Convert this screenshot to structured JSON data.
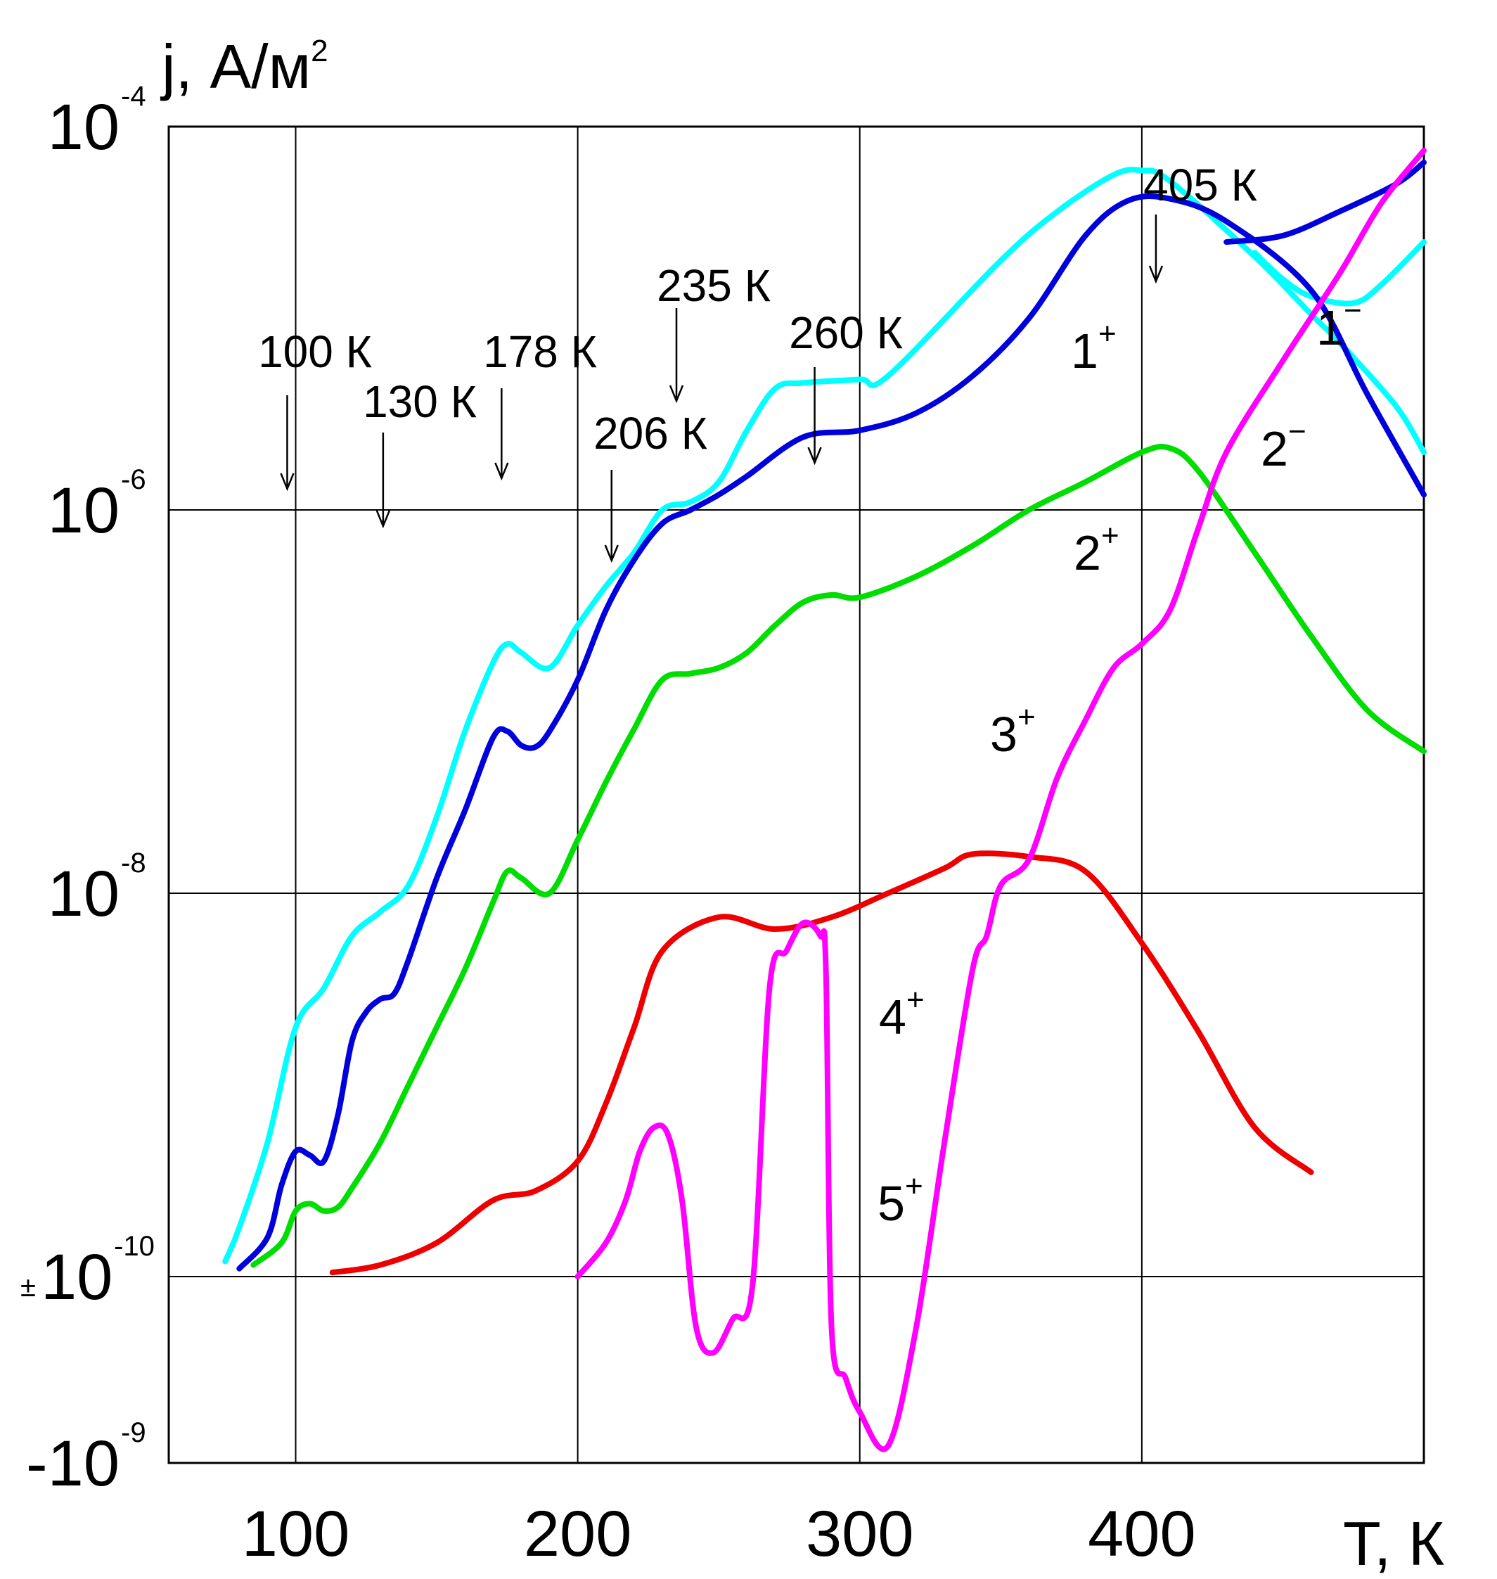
{
  "chart_data": {
    "type": "line",
    "title": "",
    "ylabel": "j, А/м²",
    "ylabel_text": "j, А/м",
    "ylabel_sup": "2",
    "xlabel": "T, К",
    "xlim": [
      55,
      500
    ],
    "y_scale": "symmetric-log (bands between labeled decades)",
    "x_ticks": [
      100,
      200,
      300,
      400
    ],
    "x_tick_labels": [
      "100",
      "200",
      "300",
      "400"
    ],
    "y_ticks": [
      {
        "value": 0.0001,
        "base": "10",
        "exp": "-4"
      },
      {
        "value": 1e-06,
        "base": "10",
        "exp": "-6"
      },
      {
        "value": 1e-08,
        "base": "10",
        "exp": "-8"
      },
      {
        "value": 1e-10,
        "base": "±10",
        "exp": "-10"
      },
      {
        "value": -1e-09,
        "base": "-10",
        "exp": "-9"
      }
    ],
    "grid": true,
    "annotations": [
      {
        "text": "100 К",
        "x": 97
      },
      {
        "text": "130 К",
        "x": 131
      },
      {
        "text": "178 К",
        "x": 173
      },
      {
        "text": "206 К",
        "x": 212
      },
      {
        "text": "235 К",
        "x": 235
      },
      {
        "text": "260 К",
        "x": 284
      },
      {
        "text": "405 К",
        "x": 405
      }
    ],
    "series": [
      {
        "name": "1",
        "sign": "+",
        "color": "#00ffff",
        "x": [
          75,
          80,
          90,
          100,
          110,
          120,
          130,
          140,
          150,
          160,
          170,
          175,
          180,
          190,
          200,
          210,
          220,
          230,
          240,
          250,
          260,
          270,
          280,
          300,
          310,
          350,
          370,
          390,
          400,
          410,
          440,
          460,
          470,
          490,
          500
        ],
        "y": [
          1.2e-10,
          1.8e-10,
          5e-10,
          2e-09,
          3.2e-09,
          6e-09,
          8e-09,
          1.1e-08,
          2.5e-08,
          7e-08,
          1.6e-07,
          2e-07,
          1.8e-07,
          1.5e-07,
          2.5e-07,
          4e-07,
          6e-07,
          1e-06,
          1.1e-06,
          1.4e-06,
          2.6e-06,
          4.3e-06,
          4.6e-06,
          4.8e-06,
          5e-06,
          2e-05,
          3.6e-05,
          5.6e-05,
          5.9e-05,
          5.2e-05,
          2.1e-05,
          1.05e-05,
          7.5e-06,
          3.5e-06,
          2e-06
        ]
      },
      {
        "name": "1",
        "sign": "−",
        "color": "#00ffff",
        "x": [
          440,
          450,
          460,
          475,
          485,
          500
        ],
        "y": [
          2.2e-05,
          1.6e-05,
          1.3e-05,
          1.2e-05,
          1.5e-05,
          2.5e-05
        ]
      },
      {
        "name": "2",
        "sign": "+",
        "color": "#0000dd",
        "x": [
          80,
          90,
          95,
          100,
          105,
          110,
          115,
          120,
          125,
          130,
          135,
          140,
          150,
          160,
          170,
          175,
          180,
          185,
          190,
          200,
          210,
          220,
          230,
          240,
          250,
          260,
          280,
          300,
          320,
          340,
          360,
          380,
          395,
          410,
          430,
          460,
          480,
          500
        ],
        "y": [
          1.1e-10,
          1.6e-10,
          3e-10,
          4.5e-10,
          4.3e-10,
          4e-10,
          7e-10,
          1.7e-09,
          2.4e-09,
          2.8e-09,
          3e-09,
          4.5e-09,
          1.2e-08,
          2.7e-08,
          6.5e-08,
          7e-08,
          5.9e-08,
          5.8e-08,
          7e-08,
          1.3e-07,
          3e-07,
          5.5e-07,
          8.5e-07,
          1e-06,
          1.2e-06,
          1.5e-06,
          2.4e-06,
          2.6e-06,
          3.2e-06,
          5e-06,
          1e-05,
          2.7e-05,
          4.1e-05,
          4.2e-05,
          3.2e-05,
          1.4e-05,
          4e-06,
          1.2e-06
        ]
      },
      {
        "name": "2",
        "sign": "−",
        "color": "#0000dd",
        "x": [
          430,
          450,
          470,
          490,
          500
        ],
        "y": [
          2.5e-05,
          2.7e-05,
          3.6e-05,
          5e-05,
          6.5e-05
        ]
      },
      {
        "name": "3",
        "sign": "+",
        "color": "#00dd00",
        "x": [
          85,
          95,
          100,
          105,
          110,
          115,
          120,
          130,
          140,
          150,
          160,
          170,
          175,
          180,
          190,
          200,
          210,
          220,
          230,
          240,
          250,
          260,
          270,
          280,
          290,
          300,
          320,
          340,
          360,
          380,
          400,
          410,
          420,
          440,
          460,
          480,
          500
        ],
        "y": [
          1.15e-10,
          1.5e-10,
          2.2e-10,
          2.4e-10,
          2.2e-10,
          2.3e-10,
          2.9e-10,
          5e-10,
          1e-09,
          2e-09,
          4e-09,
          9e-09,
          1.3e-08,
          1.2e-08,
          1e-08,
          1.9e-08,
          3.8e-08,
          7.2e-08,
          1.3e-07,
          1.4e-07,
          1.5e-07,
          1.8e-07,
          2.5e-07,
          3.3e-07,
          3.6e-07,
          3.5e-07,
          4.5e-07,
          6.5e-07,
          1e-06,
          1.4e-06,
          2e-06,
          2.1e-06,
          1.6e-06,
          6e-07,
          2.2e-07,
          9e-08,
          5.5e-08
        ]
      },
      {
        "name": "4",
        "sign": "+",
        "color": "#ee0000",
        "x": [
          113,
          130,
          150,
          170,
          185,
          200,
          210,
          220,
          230,
          250,
          270,
          290,
          310,
          330,
          340,
          360,
          380,
          400,
          420,
          440,
          460
        ],
        "y": [
          1.05e-10,
          1.15e-10,
          1.5e-10,
          2.5e-10,
          2.8e-10,
          4e-10,
          8e-10,
          2e-09,
          5e-09,
          7.5e-09,
          6.5e-09,
          7.5e-09,
          1e-08,
          1.35e-08,
          1.6e-08,
          1.55e-08,
          1.3e-08,
          5.5e-09,
          1.9e-09,
          6e-10,
          3.5e-10
        ]
      },
      {
        "name": "5",
        "sign": "+",
        "color": "#ff00ff",
        "x": [
          200,
          210,
          217,
          222,
          227,
          232,
          237,
          242,
          248,
          255,
          262,
          268,
          274,
          280,
          286,
          288,
          290,
          295,
          300,
          310,
          320,
          330,
          340,
          345,
          350,
          360,
          370,
          380,
          390,
          400,
          410,
          420,
          430,
          450,
          470,
          485,
          500
        ],
        "y": [
          1e-10,
          1.5e-10,
          2.5e-10,
          4.5e-10,
          6e-10,
          5.5e-10,
          2.5e-10,
          -2e-10,
          -3.5e-10,
          -1.5e-10,
          5e-11,
          3.2e-09,
          5e-09,
          7e-09,
          6e-09,
          4e-09,
          -2e-10,
          -5e-10,
          -7e-10,
          -9e-10,
          -2e-10,
          5e-10,
          4e-09,
          6e-09,
          1.1e-08,
          1.5e-08,
          4e-08,
          8e-08,
          1.5e-07,
          2e-07,
          3e-07,
          8e-07,
          2e-06,
          6e-06,
          1.7e-05,
          4e-05,
          7.5e-05
        ]
      }
    ],
    "curve_labels": [
      {
        "num": "1",
        "sign": "+"
      },
      {
        "num": "1",
        "sign": "−"
      },
      {
        "num": "2",
        "sign": "−"
      },
      {
        "num": "2",
        "sign": "+"
      },
      {
        "num": "3",
        "sign": "+"
      },
      {
        "num": "4",
        "sign": "+"
      },
      {
        "num": "5",
        "sign": "+"
      }
    ]
  }
}
